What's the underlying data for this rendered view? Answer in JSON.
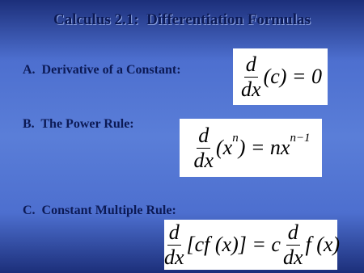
{
  "title": "Calculus 2.1:  Differentiation Formulas",
  "items": [
    {
      "label": "A.  Derivative of a Constant:",
      "formula": [
        {
          "frac": [
            "d",
            "dx"
          ]
        },
        {
          "text": "(c) = 0"
        }
      ]
    },
    {
      "label": "B.  The Power Rule:",
      "formula": [
        {
          "frac": [
            "d",
            "dx"
          ]
        },
        {
          "text": "(x"
        },
        {
          "sup": "n"
        },
        {
          "text": ") = nx"
        },
        {
          "sup": "n−1"
        }
      ]
    },
    {
      "label": "C.  Constant Multiple Rule:",
      "formula": [
        {
          "frac": [
            "d",
            "dx"
          ]
        },
        {
          "text": "[cf (x)] = c"
        },
        {
          "frac": [
            "d",
            "dx"
          ]
        },
        {
          "text": "f (x)"
        }
      ]
    }
  ]
}
